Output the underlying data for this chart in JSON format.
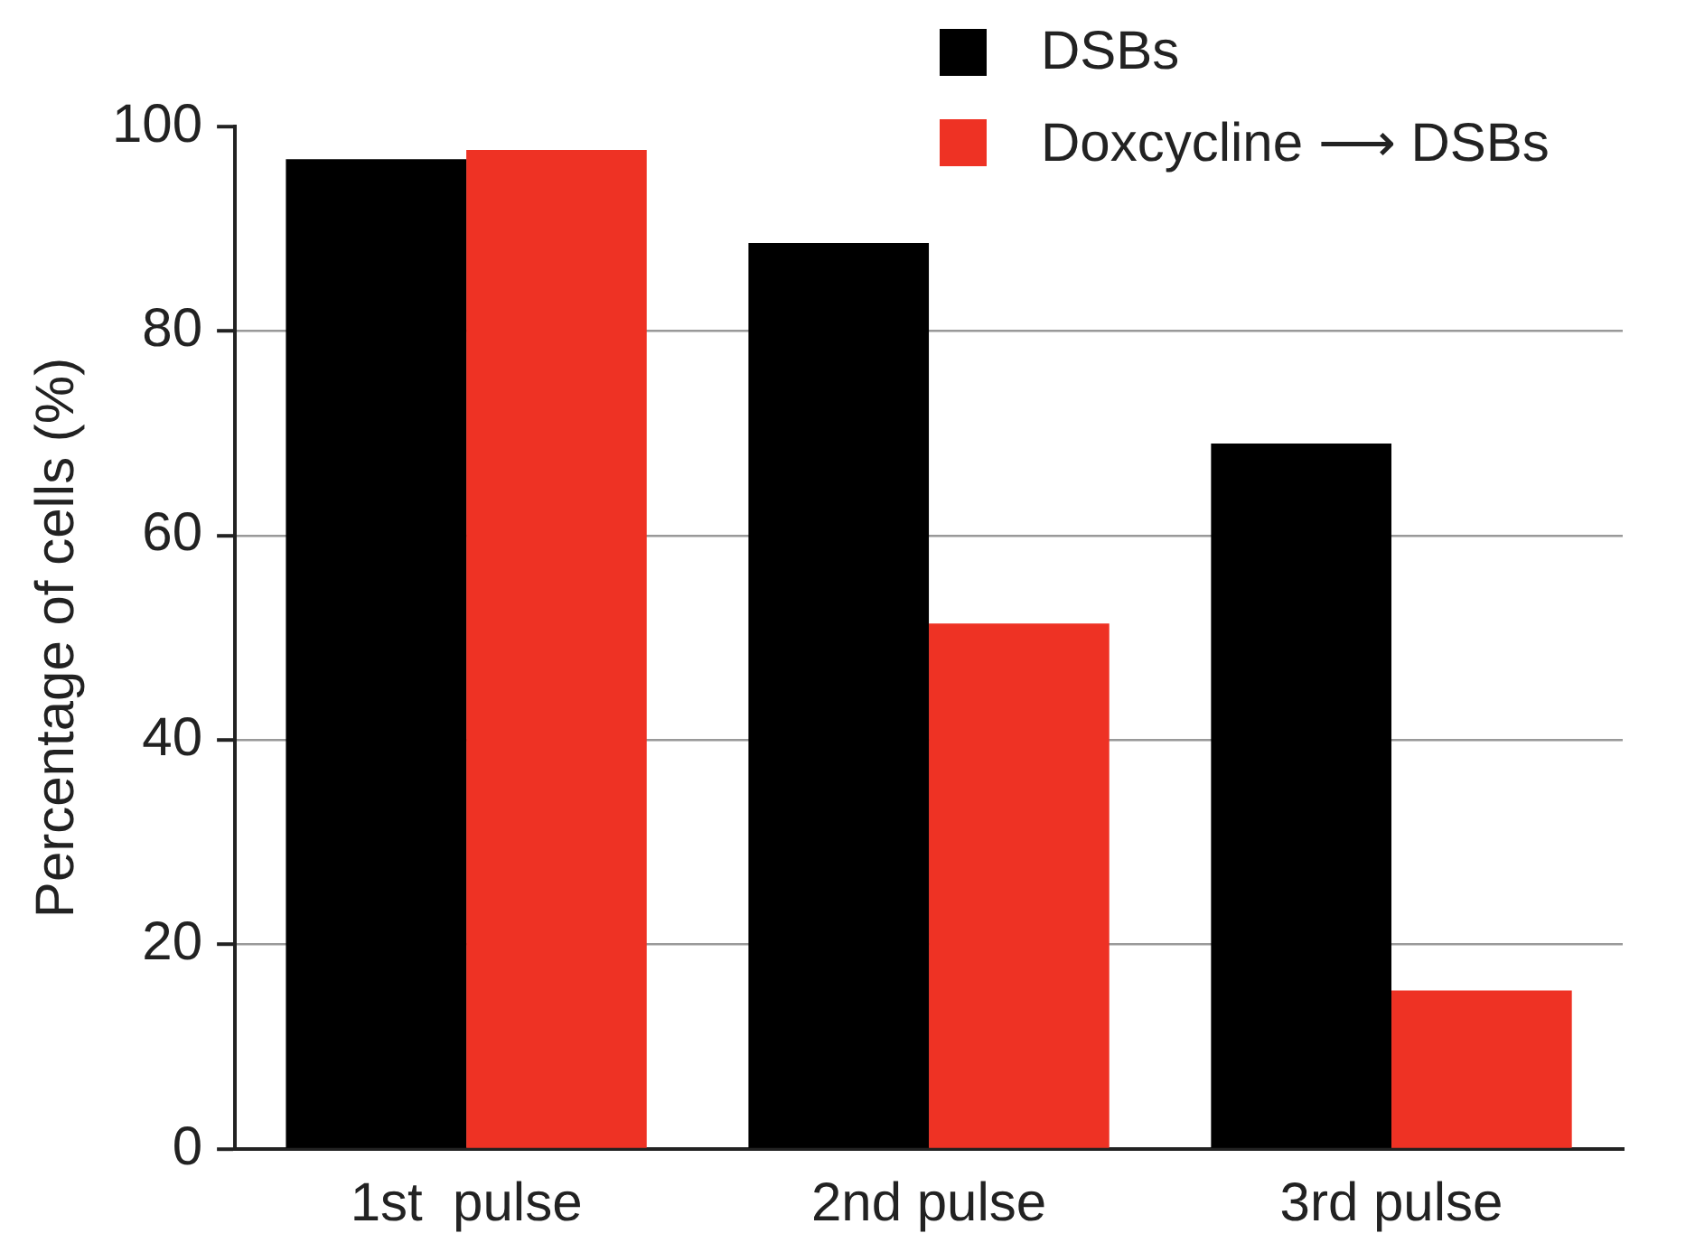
{
  "chart_data": {
    "type": "bar",
    "ylabel": "Percentage of cells (%)",
    "categories": [
      "1st  pulse",
      "2nd pulse",
      "3rd pulse"
    ],
    "series": [
      {
        "name": "DSBs",
        "color": "#000000",
        "values": [
          96.8,
          88.6,
          69.0
        ]
      },
      {
        "name": "Doxcycline ⟶ DSBs",
        "color": "#ee3224",
        "values": [
          97.7,
          51.4,
          15.5
        ]
      }
    ],
    "ylim": [
      0,
      100
    ],
    "yticks": [
      0,
      20,
      40,
      60,
      80,
      100
    ],
    "grid": "y",
    "legend": "top right"
  }
}
